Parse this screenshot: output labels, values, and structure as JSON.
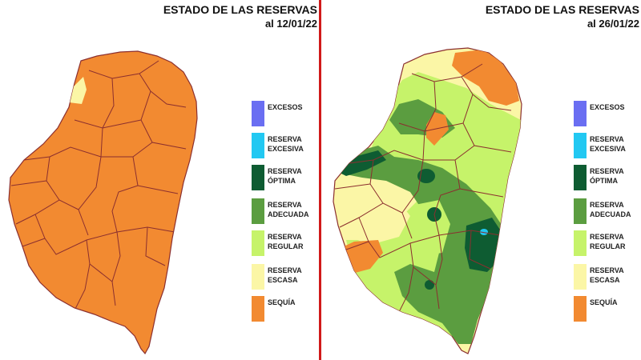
{
  "maps": [
    {
      "title": "ESTADO DE LAS RESERVAS",
      "date": "al 12/01/22"
    },
    {
      "title": "ESTADO DE LAS RESERVAS",
      "date": "al 26/01/22"
    }
  ],
  "legend": [
    {
      "label": "EXCESOS",
      "color": "#6a6ef2"
    },
    {
      "label": "RESERVA EXCESIVA",
      "color": "#22c8f2"
    },
    {
      "label": "RESERVA ÓPTIMA",
      "color": "#0e5c32"
    },
    {
      "label": "RESERVA ADECUADA",
      "color": "#5b9d40"
    },
    {
      "label": "RESERVA REGULAR",
      "color": "#c6f36a"
    },
    {
      "label": "RESERVA ESCASA",
      "color": "#fbf6a6"
    },
    {
      "label": "SEQUÍA",
      "color": "#f28a31"
    }
  ],
  "colors": {
    "divider": "#d01a1a",
    "border": "#8b2f2f",
    "sequia": "#f28a31",
    "escasa": "#fbf6a6",
    "regular": "#c6f36a",
    "adecuada": "#5b9d40",
    "optima": "#0e5c32",
    "excesiva": "#22c8f2"
  }
}
